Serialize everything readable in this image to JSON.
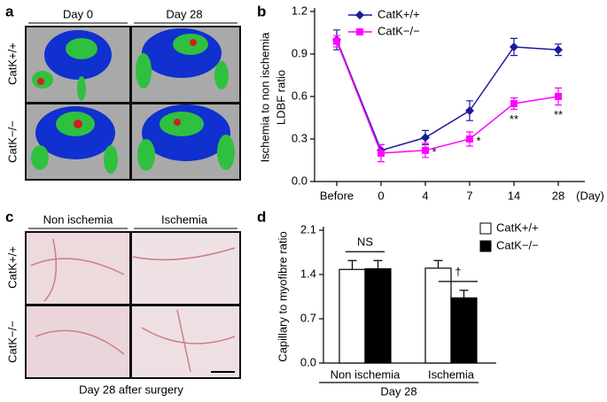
{
  "figure": {
    "panel_labels": [
      "a",
      "b",
      "c",
      "d"
    ],
    "panel_a": {
      "columns": [
        "Day 0",
        "Day 28"
      ],
      "rows": [
        "CatK+/+",
        "CatK−/−"
      ]
    },
    "panel_c": {
      "columns": [
        "Non ischemia",
        "Ischemia"
      ],
      "rows": [
        "CatK+/+",
        "CatK−/−"
      ],
      "caption": "Day 28 after surgery"
    }
  },
  "chart_data": [
    {
      "type": "line",
      "ylabel": [
        "Ischemia to non ischemia",
        "LDBF ratio"
      ],
      "xlabel": "(Day)",
      "categories": [
        "Before",
        "0",
        "4",
        "7",
        "14",
        "28"
      ],
      "series": [
        {
          "name": "CatK+/+",
          "color": "#1a1a9c",
          "marker": "diamond",
          "values": [
            1.0,
            0.22,
            0.31,
            0.5,
            0.95,
            0.93
          ],
          "errors": [
            0.07,
            0.04,
            0.05,
            0.07,
            0.06,
            0.04
          ]
        },
        {
          "name": "CatK−/−",
          "color": "#ff00ff",
          "marker": "square",
          "values": [
            0.99,
            0.2,
            0.22,
            0.3,
            0.55,
            0.6
          ],
          "errors": [
            0.04,
            0.06,
            0.05,
            0.05,
            0.04,
            0.06
          ]
        }
      ],
      "annotations": [
        null,
        null,
        "*",
        "*",
        "**",
        "**"
      ],
      "ylim": [
        0,
        1.2
      ],
      "yticks": [
        {
          "value": 0,
          "label": "0.0"
        },
        0.3,
        0.6,
        0.9,
        1.2
      ]
    },
    {
      "type": "bar",
      "ylabel": "Capillary to myofibre ratio",
      "xlabel": "Day 28",
      "categories": [
        "Non ischemia",
        "Ischemia"
      ],
      "series": [
        {
          "name": "CatK+/+",
          "color": "#ffffff",
          "values": [
            1.48,
            1.5
          ],
          "errors": [
            0.14,
            0.12
          ]
        },
        {
          "name": "CatK−/−",
          "color": "#000000",
          "values": [
            1.49,
            1.03
          ],
          "errors": [
            0.13,
            0.12
          ]
        }
      ],
      "group_annotations": [
        "NS",
        "†"
      ],
      "ylim": [
        0,
        2.1
      ],
      "yticks": [
        {
          "value": 0,
          "label": "0.0"
        },
        0.7,
        1.4,
        2.1
      ]
    }
  ]
}
